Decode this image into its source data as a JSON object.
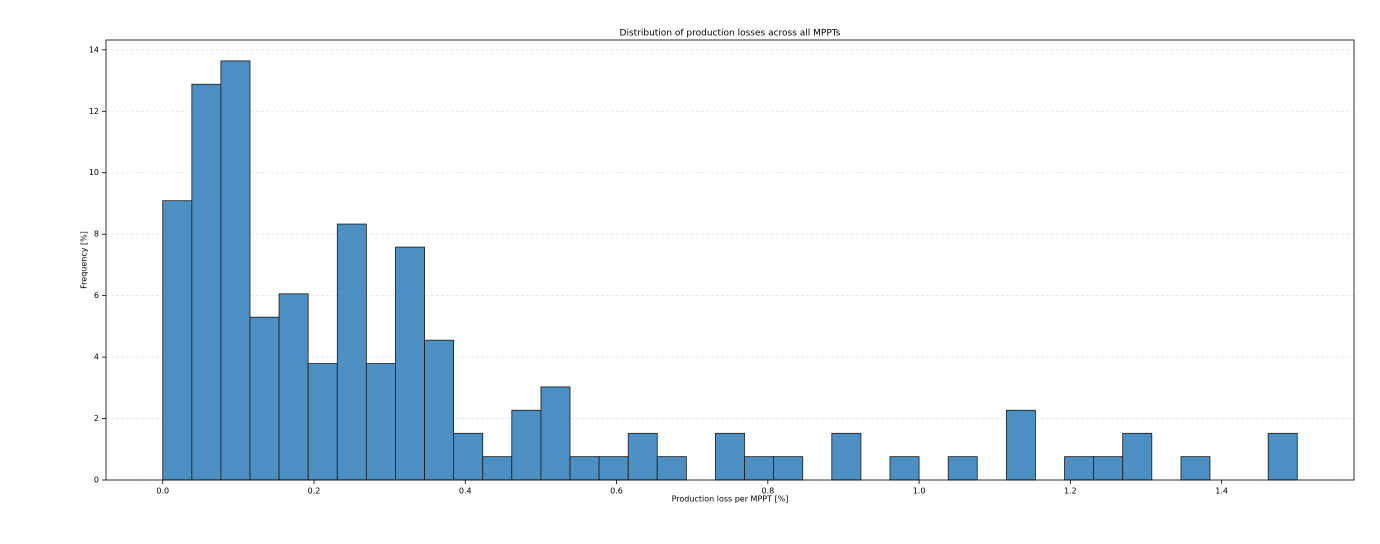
{
  "chart_data": {
    "type": "histogram",
    "title": "Distribution of production losses across all MPPTs",
    "xlabel": "Production loss per MPPT [%]",
    "ylabel": "Frequency [%]",
    "bins": [
      0,
      0.0385,
      0.0769,
      0.1154,
      0.1538,
      0.1923,
      0.2308,
      0.2692,
      0.3077,
      0.3462,
      0.3846,
      0.4231,
      0.4615,
      0.5,
      0.5385,
      0.5769,
      0.6154,
      0.6538,
      0.6923,
      0.7308,
      0.7692,
      0.8077,
      0.8462,
      0.8846,
      0.9231,
      0.9615,
      1.0,
      1.0385,
      1.0769,
      1.1154,
      1.1538,
      1.1923,
      1.2308,
      1.2692,
      1.3077,
      1.3462,
      1.3846,
      1.4231,
      1.4615,
      1.5
    ],
    "values": [
      9.09,
      12.88,
      13.64,
      5.3,
      6.06,
      3.79,
      8.33,
      3.79,
      7.58,
      4.55,
      1.52,
      0.76,
      2.27,
      3.03,
      0.76,
      0.76,
      1.52,
      0.76,
      0,
      1.52,
      0.76,
      0.76,
      0,
      1.52,
      0,
      0.76,
      0,
      0.76,
      0,
      2.27,
      0,
      0.76,
      0.76,
      1.52,
      0,
      0.76,
      0,
      0,
      1.52
    ],
    "color": "#4b8fc3",
    "edgecolor": "#1a1a1a",
    "xlim": [
      -0.075,
      1.575
    ],
    "ylim": [
      0,
      14.32
    ],
    "xticks": [
      {
        "value": 0,
        "label": "0.0"
      },
      0.2,
      0.4,
      0.6,
      0.8,
      {
        "value": 1,
        "label": "1.0"
      },
      1.2,
      1.4
    ],
    "yticks": [
      0,
      2,
      4,
      6,
      8,
      10,
      12,
      14
    ],
    "grid": true
  }
}
